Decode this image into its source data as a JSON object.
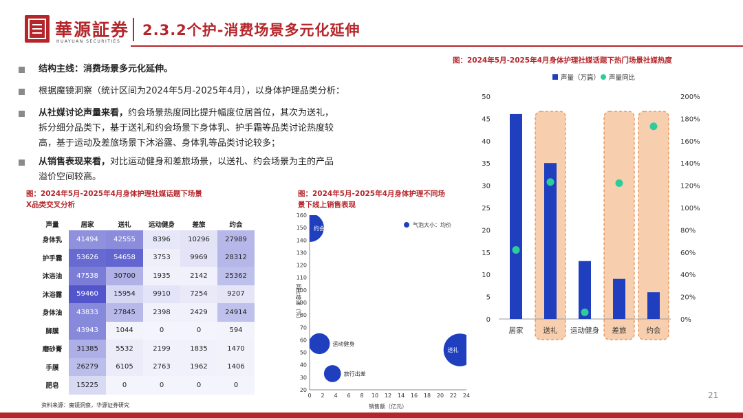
{
  "header": {
    "brand": "華源証券",
    "brand_en": "HUAYUAN SECURITIES",
    "title": "2.3.2个护-消费场景多元化延伸",
    "page": "21"
  },
  "bullets": [
    {
      "bold": "结构主线：消费场景多元化延伸。",
      "lines": []
    },
    {
      "bold": "",
      "lines": [
        "根据魔镜洞察（统计区间为2024年5月-2025年4月），以身体护理品类分析："
      ]
    },
    {
      "bold": "从社媒讨论声量来看，",
      "lines": [
        "约会场景热度同比提升幅度位居首位，其次为送礼，",
        "拆分细分品类下，基于送礼和约会场景下身体乳、护手霜等品类讨论热度较",
        "高，基于运动及差旅场景下沐浴露、身体乳等品类讨论较多；"
      ]
    },
    {
      "bold": "从销售表现来看，",
      "lines": [
        "对比运动健身和差旅场景，以送礼、约会场景为主的产品",
        "溢价空间较高。"
      ]
    }
  ],
  "captions": {
    "table": [
      "图：2024年5月-2025年4月身体护理社媒话题下场景",
      "X品类交叉分析"
    ],
    "bubble": [
      "图：2024年5月-2025年4月身体护理不同场",
      "景下线上销售表现"
    ],
    "bar": "图：2024年5月-2025年4月身体护理社媒话题下热门场景社媒热度"
  },
  "source": "资料来源：魔镜洞察，华源证券研究",
  "chart_data": [
    {
      "type": "table",
      "header_corner": "声量",
      "columns": [
        "居家",
        "送礼",
        "运动健身",
        "差旅",
        "约会"
      ],
      "rows": [
        {
          "label": "身体乳",
          "values": [
            "41494",
            "42555",
            "8396",
            "10296",
            "27989"
          ]
        },
        {
          "label": "护手霜",
          "values": [
            "53626",
            "54658",
            "3753",
            "9969",
            "28312"
          ]
        },
        {
          "label": "沐浴油",
          "values": [
            "47538",
            "30700",
            "1935",
            "2142",
            "25362"
          ]
        },
        {
          "label": "沐浴露",
          "values": [
            "59460",
            "15954",
            "9910",
            "7254",
            "9207"
          ]
        },
        {
          "label": "身体油",
          "values": [
            "43833",
            "27845",
            "2398",
            "2429",
            "24914"
          ]
        },
        {
          "label": "脚膜",
          "values": [
            "43943",
            "1044",
            "0",
            "0",
            "594"
          ]
        },
        {
          "label": "磨砂膏",
          "values": [
            "31385",
            "5532",
            "2199",
            "1835",
            "1470"
          ]
        },
        {
          "label": "手膜",
          "values": [
            "26279",
            "6105",
            "2763",
            "1962",
            "1406"
          ]
        },
        {
          "label": "肥皂",
          "values": [
            "15225",
            "0",
            "0",
            "0",
            "0"
          ]
        }
      ],
      "heat_color": "#3b3fc4"
    },
    {
      "type": "scatter",
      "xlabel": "销售额（亿元）",
      "ylabel": "同比增速（%）",
      "legend": "气泡大小：均价",
      "xlim": [
        0,
        24
      ],
      "ylim": [
        20,
        160
      ],
      "xticks": [
        "0",
        "2",
        "4",
        "6",
        "8",
        "10",
        "12",
        "14",
        "16",
        "18",
        "20",
        "22",
        "24"
      ],
      "yticks": [
        "20",
        "30",
        "40",
        "50",
        "60",
        "70",
        "80",
        "90",
        "100",
        "110",
        "120",
        "130",
        "140",
        "150",
        "160"
      ],
      "points": [
        {
          "label": "约会",
          "x": 0,
          "y": 150,
          "size": 2.2
        },
        {
          "label": "运动健身",
          "x": 1.5,
          "y": 57,
          "size": 1.6
        },
        {
          "label": "旅行出差",
          "x": 3.5,
          "y": 33,
          "size": 1.3
        },
        {
          "label": "送礼",
          "x": 23,
          "y": 52,
          "size": 2.5
        }
      ],
      "bubble_color": "#1f3fbf"
    },
    {
      "type": "bar",
      "categories": [
        "居家",
        "送礼",
        "运动健身",
        "差旅",
        "约会"
      ],
      "series": [
        {
          "name": "声量（万篇）",
          "values": [
            46,
            35,
            13,
            9,
            6
          ],
          "color": "#1f3fbf"
        },
        {
          "name": "声量同比",
          "values": [
            62,
            123,
            6,
            122,
            173
          ],
          "color": "#2ecc9a"
        }
      ],
      "highlight": [
        "送礼",
        "差旅",
        "约会"
      ],
      "highlight_color": "#f8cfae",
      "highlight_border": "#e4894a",
      "ylim": [
        0,
        50
      ],
      "y2lim": [
        0,
        200
      ],
      "yticks": [
        "0",
        "5",
        "10",
        "15",
        "20",
        "25",
        "30",
        "35",
        "40",
        "45",
        "50"
      ],
      "y2ticks": [
        "0%",
        "20%",
        "40%",
        "60%",
        "80%",
        "100%",
        "120%",
        "140%",
        "160%",
        "180%",
        "200%"
      ],
      "legend_position": "top"
    }
  ]
}
